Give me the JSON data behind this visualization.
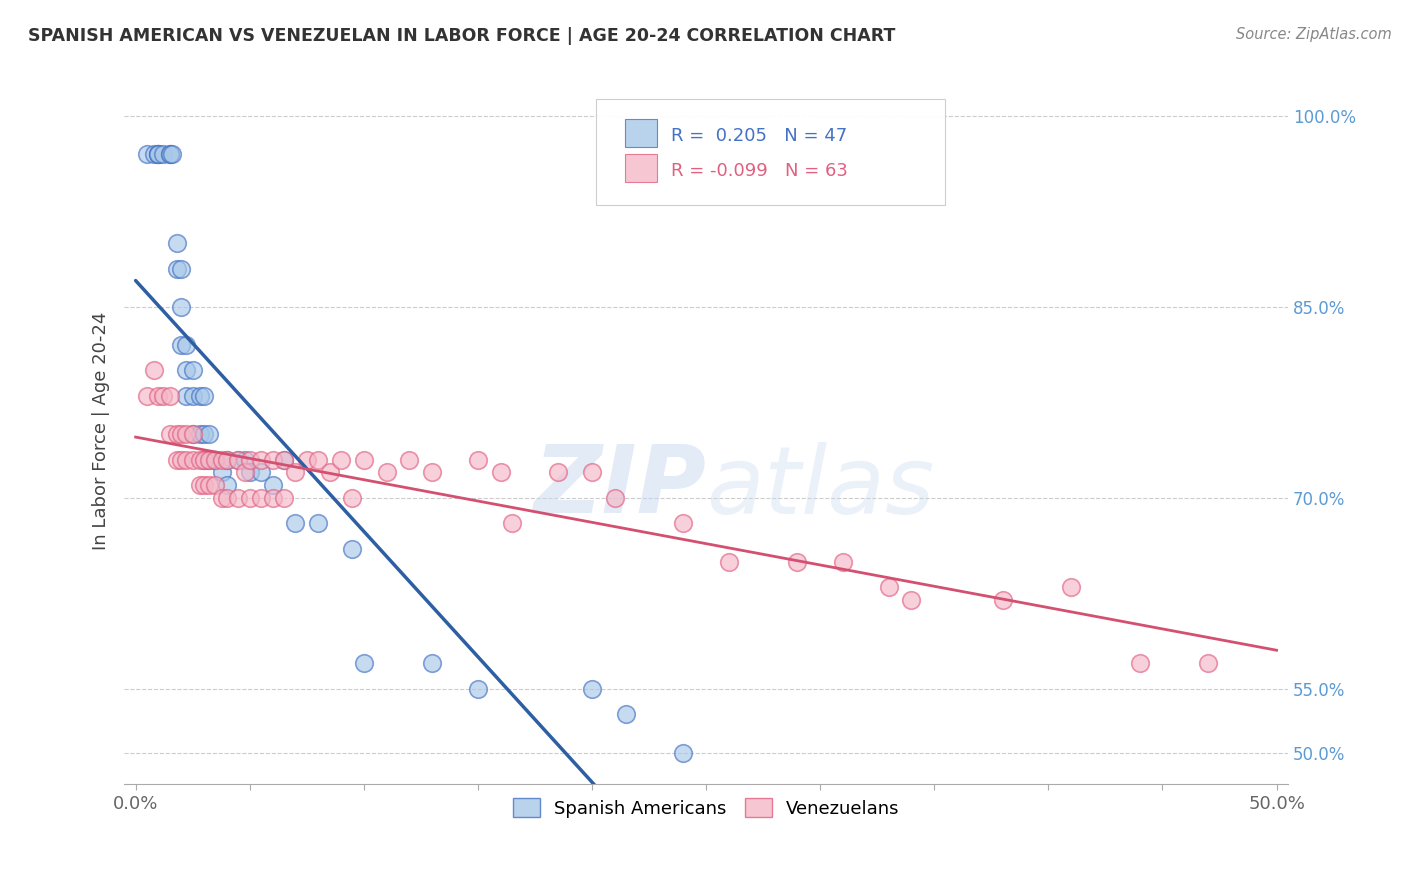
{
  "title": "SPANISH AMERICAN VS VENEZUELAN IN LABOR FORCE | AGE 20-24 CORRELATION CHART",
  "source": "Source: ZipAtlas.com",
  "ylabel": "In Labor Force | Age 20-24",
  "xlim": [
    -0.005,
    0.505
  ],
  "ylim": [
    0.475,
    1.03
  ],
  "ytick_labels": [
    "50.0%",
    "55.0%",
    "70.0%",
    "85.0%",
    "100.0%"
  ],
  "ytick_vals": [
    0.5,
    0.55,
    0.7,
    0.85,
    1.0
  ],
  "xtick_vals": [
    0.0,
    0.05,
    0.1,
    0.15,
    0.2,
    0.25,
    0.3,
    0.35,
    0.4,
    0.45,
    0.5
  ],
  "xtick_label_vals": [
    0.0,
    0.5
  ],
  "xtick_labels": [
    "0.0%",
    "50.0%"
  ],
  "blue_r": 0.205,
  "blue_n": 47,
  "pink_r": -0.099,
  "pink_n": 63,
  "blue_color": "#a8c8e8",
  "pink_color": "#f4b8c8",
  "blue_edge_color": "#4472c4",
  "pink_edge_color": "#e06080",
  "blue_line_color": "#2e5fa3",
  "pink_line_color": "#d45070",
  "watermark_color": "#c8d8f0",
  "legend_label_blue": "Spanish Americans",
  "legend_label_pink": "Venezuelans",
  "background_color": "#ffffff",
  "grid_color": "#cccccc",
  "blue_scatter_x": [
    0.005,
    0.008,
    0.01,
    0.01,
    0.01,
    0.012,
    0.015,
    0.015,
    0.016,
    0.018,
    0.018,
    0.02,
    0.02,
    0.02,
    0.022,
    0.022,
    0.022,
    0.025,
    0.025,
    0.025,
    0.028,
    0.028,
    0.03,
    0.03,
    0.03,
    0.032,
    0.032,
    0.035,
    0.035,
    0.038,
    0.04,
    0.04,
    0.045,
    0.048,
    0.05,
    0.055,
    0.06,
    0.065,
    0.07,
    0.08,
    0.095,
    0.1,
    0.13,
    0.15,
    0.2,
    0.215,
    0.24
  ],
  "blue_scatter_y": [
    0.97,
    0.97,
    0.97,
    0.97,
    0.97,
    0.97,
    0.97,
    0.97,
    0.97,
    0.9,
    0.88,
    0.88,
    0.85,
    0.82,
    0.82,
    0.8,
    0.78,
    0.8,
    0.78,
    0.75,
    0.78,
    0.75,
    0.78,
    0.75,
    0.73,
    0.75,
    0.73,
    0.73,
    0.73,
    0.72,
    0.73,
    0.71,
    0.73,
    0.73,
    0.72,
    0.72,
    0.71,
    0.73,
    0.68,
    0.68,
    0.66,
    0.57,
    0.57,
    0.55,
    0.55,
    0.53,
    0.5
  ],
  "pink_scatter_x": [
    0.005,
    0.008,
    0.01,
    0.012,
    0.015,
    0.015,
    0.018,
    0.018,
    0.02,
    0.02,
    0.022,
    0.022,
    0.025,
    0.025,
    0.028,
    0.028,
    0.03,
    0.03,
    0.032,
    0.032,
    0.035,
    0.035,
    0.038,
    0.038,
    0.04,
    0.04,
    0.045,
    0.045,
    0.048,
    0.05,
    0.05,
    0.055,
    0.055,
    0.06,
    0.06,
    0.065,
    0.065,
    0.07,
    0.075,
    0.08,
    0.085,
    0.09,
    0.095,
    0.1,
    0.11,
    0.12,
    0.13,
    0.15,
    0.16,
    0.165,
    0.185,
    0.2,
    0.21,
    0.24,
    0.26,
    0.29,
    0.31,
    0.33,
    0.34,
    0.38,
    0.41,
    0.44,
    0.47
  ],
  "pink_scatter_y": [
    0.78,
    0.8,
    0.78,
    0.78,
    0.78,
    0.75,
    0.75,
    0.73,
    0.75,
    0.73,
    0.75,
    0.73,
    0.75,
    0.73,
    0.73,
    0.71,
    0.73,
    0.71,
    0.73,
    0.71,
    0.73,
    0.71,
    0.73,
    0.7,
    0.73,
    0.7,
    0.73,
    0.7,
    0.72,
    0.73,
    0.7,
    0.73,
    0.7,
    0.73,
    0.7,
    0.73,
    0.7,
    0.72,
    0.73,
    0.73,
    0.72,
    0.73,
    0.7,
    0.73,
    0.72,
    0.73,
    0.72,
    0.73,
    0.72,
    0.68,
    0.72,
    0.72,
    0.7,
    0.68,
    0.65,
    0.65,
    0.65,
    0.63,
    0.62,
    0.62,
    0.63,
    0.57,
    0.57
  ]
}
